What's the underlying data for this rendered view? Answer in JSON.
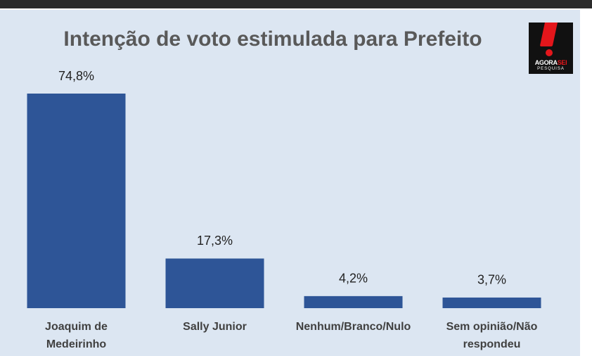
{
  "chart_data": {
    "type": "bar",
    "title": "Intenção de voto estimulada para Prefeito",
    "categories": [
      "Joaquim de Medeirinho",
      "Sally Junior",
      "Nenhum/Branco/Nulo",
      "Sem opinião/Não respondeu"
    ],
    "values": [
      74.8,
      17.3,
      4.2,
      3.7
    ],
    "value_labels": [
      "74,8%",
      "17,3%",
      "4,2%",
      "3,7%"
    ],
    "color": "#2e5597"
  },
  "logo": {
    "word_a": "AGORA",
    "word_b": "SEI",
    "subtitle": "PESQUISA"
  }
}
